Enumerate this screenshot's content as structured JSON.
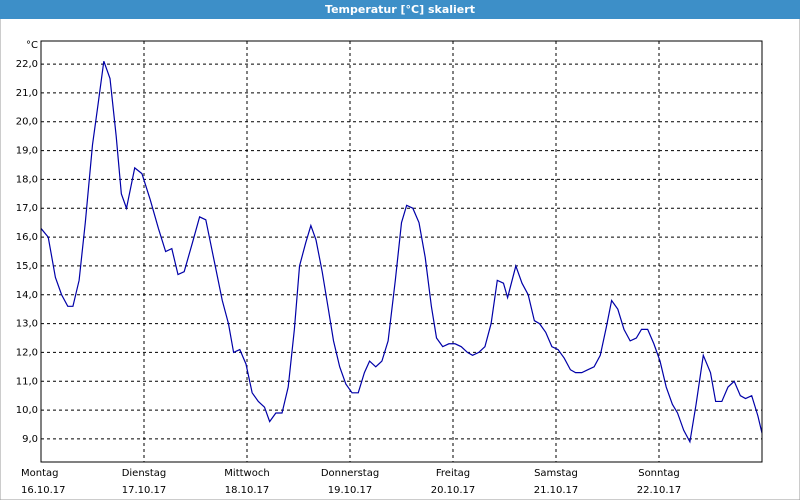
{
  "window_title": "Temperatur [°C] skaliert",
  "chart_data": {
    "type": "line",
    "y_unit": "°C",
    "grid": true,
    "xlim": [
      0,
      7
    ],
    "ylim": [
      8.2,
      22.8
    ],
    "xticks": [
      {
        "value": 0,
        "label": "Montag",
        "date": "16.10.17"
      },
      {
        "value": 1,
        "label": "Dienstag",
        "date": "17.10.17"
      },
      {
        "value": 2,
        "label": "Mittwoch",
        "date": "18.10.17"
      },
      {
        "value": 3,
        "label": "Donnerstag",
        "date": "19.10.17"
      },
      {
        "value": 4,
        "label": "Freitag",
        "date": "20.10.17"
      },
      {
        "value": 5,
        "label": "Samstag",
        "date": "21.10.17"
      },
      {
        "value": 6,
        "label": "Sonntag",
        "date": "22.10.17"
      }
    ],
    "yticks": [
      {
        "value": 9,
        "label": "9,0"
      },
      {
        "value": 10,
        "label": "10,0"
      },
      {
        "value": 11,
        "label": "11,0"
      },
      {
        "value": 12,
        "label": "12,0"
      },
      {
        "value": 13,
        "label": "13,0"
      },
      {
        "value": 14,
        "label": "14,0"
      },
      {
        "value": 15,
        "label": "15,0"
      },
      {
        "value": 16,
        "label": "16,0"
      },
      {
        "value": 17,
        "label": "17,0"
      },
      {
        "value": 18,
        "label": "18,0"
      },
      {
        "value": 19,
        "label": "19,0"
      },
      {
        "value": 20,
        "label": "20,0"
      },
      {
        "value": 21,
        "label": "21,0"
      },
      {
        "value": 22,
        "label": "22,0"
      }
    ],
    "x": [
      0,
      0.07,
      0.14,
      0.2,
      0.26,
      0.31,
      0.37,
      0.43,
      0.5,
      0.55,
      0.61,
      0.67,
      0.73,
      0.78,
      0.83,
      0.91,
      0.98,
      1.06,
      1.14,
      1.21,
      1.27,
      1.33,
      1.39,
      1.47,
      1.54,
      1.6,
      1.68,
      1.76,
      1.82,
      1.87,
      1.93,
      1.99,
      2.05,
      2.11,
      2.17,
      2.22,
      2.28,
      2.34,
      2.4,
      2.46,
      2.51,
      2.57,
      2.62,
      2.67,
      2.73,
      2.79,
      2.84,
      2.9,
      2.96,
      3.02,
      3.08,
      3.14,
      3.19,
      3.25,
      3.31,
      3.37,
      3.44,
      3.5,
      3.55,
      3.61,
      3.67,
      3.73,
      3.79,
      3.84,
      3.9,
      3.96,
      4.02,
      4.08,
      4.14,
      4.19,
      4.25,
      4.31,
      4.37,
      4.43,
      4.49,
      4.53,
      4.61,
      4.67,
      4.73,
      4.79,
      4.84,
      4.9,
      4.96,
      5.02,
      5.08,
      5.14,
      5.19,
      5.25,
      5.31,
      5.37,
      5.43,
      5.49,
      5.54,
      5.6,
      5.66,
      5.72,
      5.78,
      5.83,
      5.89,
      5.95,
      6.01,
      6.07,
      6.13,
      6.18,
      6.24,
      6.3,
      6.36,
      6.43,
      6.5,
      6.55,
      6.61,
      6.67,
      6.73,
      6.79,
      6.84,
      6.9,
      6.96,
      7.0
    ],
    "series": [
      {
        "color": "#0000a8",
        "values": [
          16.3,
          16.0,
          14.6,
          14.0,
          13.6,
          13.6,
          14.5,
          16.5,
          19.2,
          20.5,
          22.1,
          21.5,
          19.5,
          17.5,
          17.0,
          18.4,
          18.2,
          17.3,
          16.3,
          15.5,
          15.6,
          14.7,
          14.8,
          15.8,
          16.7,
          16.6,
          15.2,
          13.8,
          13.0,
          12.0,
          12.1,
          11.6,
          10.6,
          10.3,
          10.1,
          9.6,
          9.9,
          9.9,
          10.8,
          12.8,
          15.0,
          15.8,
          16.4,
          15.9,
          14.8,
          13.5,
          12.4,
          11.5,
          10.9,
          10.6,
          10.6,
          11.3,
          11.7,
          11.5,
          11.7,
          12.4,
          14.5,
          16.5,
          17.1,
          17.0,
          16.5,
          15.3,
          13.6,
          12.5,
          12.2,
          12.3,
          12.3,
          12.2,
          12.0,
          11.9,
          12.0,
          12.2,
          13.0,
          14.5,
          14.4,
          13.9,
          15.0,
          14.4,
          14.0,
          13.1,
          13.0,
          12.7,
          12.2,
          12.1,
          11.8,
          11.4,
          11.3,
          11.3,
          11.4,
          11.5,
          11.9,
          12.9,
          13.8,
          13.5,
          12.8,
          12.4,
          12.5,
          12.8,
          12.8,
          12.3,
          11.7,
          10.8,
          10.2,
          9.9,
          9.3,
          8.9,
          10.2,
          11.9,
          11.3,
          10.3,
          10.3,
          10.8,
          11.0,
          10.5,
          10.4,
          10.5,
          9.8,
          9.2
        ]
      }
    ]
  }
}
